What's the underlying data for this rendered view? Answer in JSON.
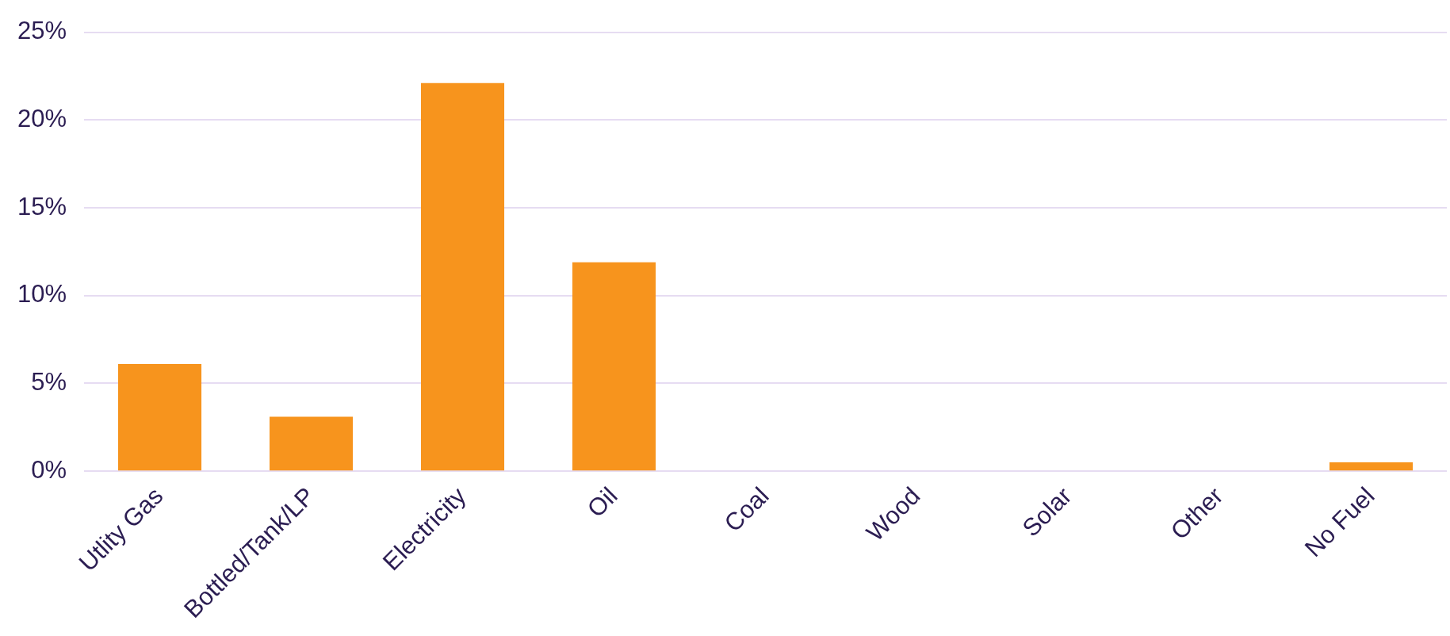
{
  "chart_data": {
    "type": "bar",
    "categories": [
      "Utlity Gas",
      "Bottled/Tank/LP",
      "Electricity",
      "Oil",
      "Coal",
      "Wood",
      "Solar",
      "Other",
      "No Fuel"
    ],
    "values": [
      6.1,
      3.1,
      22.1,
      11.9,
      0,
      0,
      0,
      0,
      0.5
    ],
    "color": "#f7941d",
    "ylim": [
      0,
      25
    ],
    "yticks": [
      {
        "value": 0,
        "label": "0%"
      },
      {
        "value": 5,
        "label": "5%"
      },
      {
        "value": 10,
        "label": "10%"
      },
      {
        "value": 15,
        "label": "15%"
      },
      {
        "value": 20,
        "label": "20%"
      },
      {
        "value": 25,
        "label": "25%"
      }
    ],
    "grid": "y",
    "legend": false
  }
}
